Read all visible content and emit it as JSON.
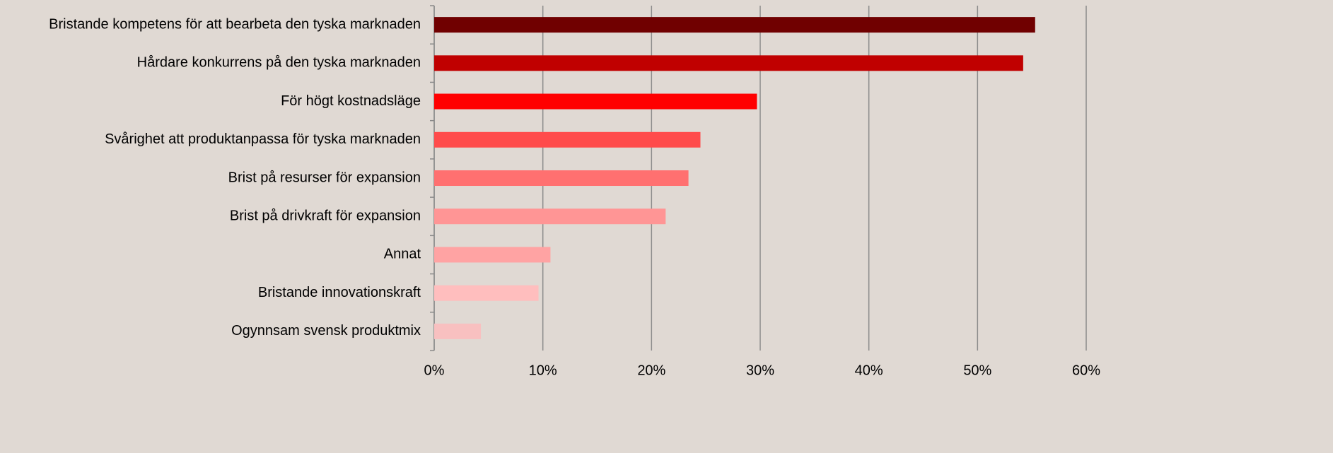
{
  "chart_data": {
    "type": "barh",
    "categories": [
      "Bristande kompetens för att bearbeta den tyska marknaden",
      "Hårdare konkurrens på den tyska marknaden",
      "För högt kostnadsläge",
      "Svårighet att produktanpassa för tyska marknaden",
      "Brist på resurser för expansion",
      "Brist på drivkraft för expansion",
      "Annat",
      "Bristande innovationskraft",
      "Ogynnsam svensk produktmix"
    ],
    "values": [
      55.3,
      54.2,
      29.7,
      24.5,
      23.4,
      21.3,
      10.7,
      9.6,
      4.3
    ],
    "colors": [
      "#700000",
      "#c00000",
      "#ff0000",
      "#ff4b4b",
      "#ff7070",
      "#ff9595",
      "#ffa3a3",
      "#ffbebe",
      "#f8c0c0"
    ],
    "xlim": [
      0,
      60
    ],
    "xticks": [
      {
        "value": 0,
        "label": "0%"
      },
      {
        "value": 10,
        "label": "10%"
      },
      {
        "value": 20,
        "label": "20%"
      },
      {
        "value": 30,
        "label": "30%"
      },
      {
        "value": 40,
        "label": "40%"
      },
      {
        "value": 50,
        "label": "50%"
      },
      {
        "value": 60,
        "label": "60%"
      }
    ],
    "grid": true
  }
}
